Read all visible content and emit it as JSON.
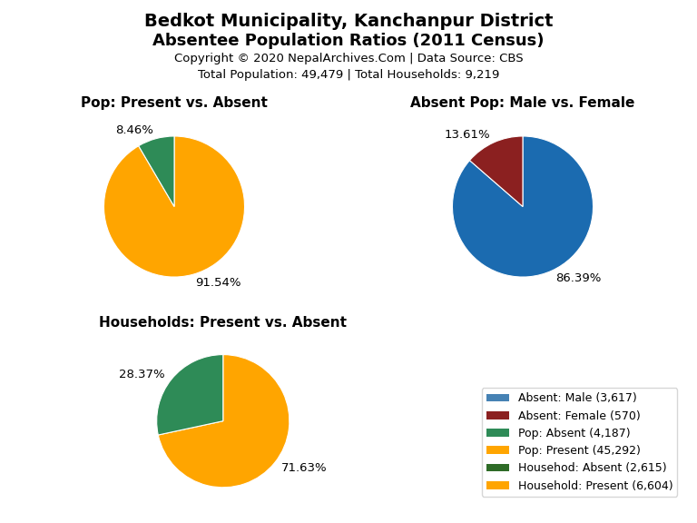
{
  "title": "Bedkot Municipality, Kanchanpur District",
  "subtitle": "Absentee Population Ratios (2011 Census)",
  "annotations": [
    "Copyright © 2020 NepalArchives.Com | Data Source: CBS",
    "Total Population: 49,479 | Total Households: 9,219"
  ],
  "legend": "lower right",
  "legend_entries": [
    {
      "name": "Absent: Male (3,617)",
      "color": "#4682B4"
    },
    {
      "name": "Absent: Female (570)",
      "color": "#8B2020"
    },
    {
      "name": "Pop: Absent (4,187)",
      "color": "#2E8B57"
    },
    {
      "name": "Pop: Present (45,292)",
      "color": "#FFA500"
    },
    {
      "name": "Househod: Absent (2,615)",
      "color": "#2E6B27"
    },
    {
      "name": "Household: Present (6,604)",
      "color": "#FFA500"
    }
  ],
  "chart_data": [
    {
      "type": "pie",
      "title": "Pop: Present vs. Absent",
      "values": [
        91.54,
        8.46
      ],
      "value_labels": [
        "91.54%",
        "8.46%"
      ],
      "colors": [
        "#FFA500",
        "#2E8B57"
      ],
      "data_labels": true
    },
    {
      "type": "pie",
      "title": "Absent Pop: Male vs. Female",
      "values": [
        86.39,
        13.61
      ],
      "value_labels": [
        "86.39%",
        "13.61%"
      ],
      "colors": [
        "#1B6BB0",
        "#8B2020"
      ],
      "data_labels": true
    },
    {
      "type": "pie",
      "title": "Households: Present vs. Absent",
      "values": [
        71.63,
        28.37
      ],
      "value_labels": [
        "71.63%",
        "28.37%"
      ],
      "colors": [
        "#FFA500",
        "#2E8B57"
      ],
      "data_labels": true
    }
  ]
}
